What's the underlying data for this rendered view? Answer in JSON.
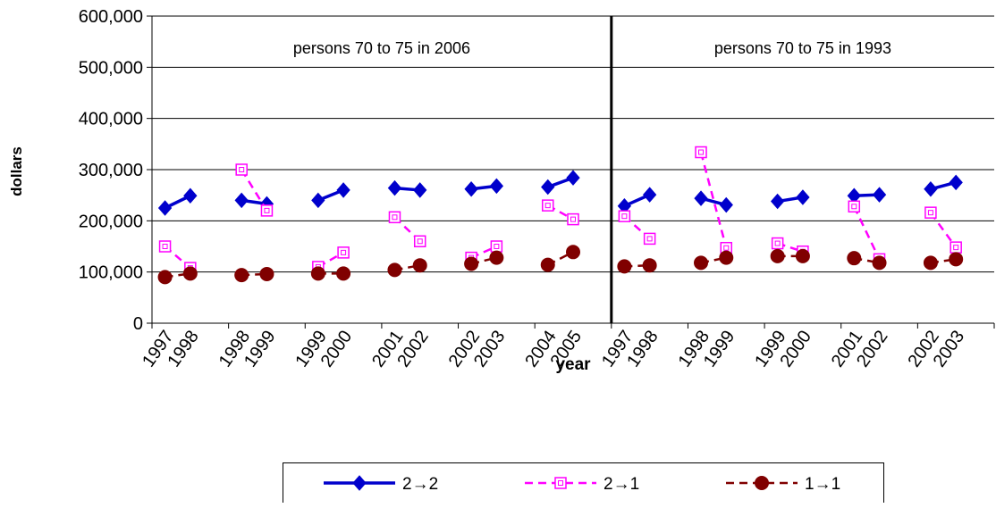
{
  "chart_data": {
    "type": "line",
    "ylabel": "dollars",
    "xlabel": "year",
    "ylim": [
      0,
      600000
    ],
    "y_ticks": [
      "0",
      "100,000",
      "200,000",
      "300,000",
      "400,000",
      "500,000",
      "600,000"
    ],
    "grid": true,
    "legend_placement": "bottom",
    "panels": [
      {
        "label": "persons 70 to 75 in 2006",
        "pairs": [
          {
            "years": [
              "1997",
              "1998"
            ],
            "s22": [
              225000,
              249000
            ],
            "s21": [
              150000,
              108000
            ],
            "s11": [
              90000,
              97000
            ]
          },
          {
            "years": [
              "1998",
              "1999"
            ],
            "s22": [
              240000,
              233000
            ],
            "s21": [
              300000,
              220000
            ],
            "s11": [
              94000,
              96000
            ]
          },
          {
            "years": [
              "1999",
              "2000"
            ],
            "s22": [
              240000,
              260000
            ],
            "s21": [
              110000,
              138000
            ],
            "s11": [
              97000,
              97000
            ]
          },
          {
            "years": [
              "2001",
              "2002"
            ],
            "s22": [
              264000,
              260000
            ],
            "s21": [
              207000,
              160000
            ],
            "s11": [
              104000,
              113000
            ]
          },
          {
            "years": [
              "2002",
              "2003"
            ],
            "s22": [
              262000,
              268000
            ],
            "s21": [
              128000,
              150000
            ],
            "s11": [
              116000,
              128000
            ]
          },
          {
            "years": [
              "2004",
              "2005"
            ],
            "s22": [
              266000,
              284000
            ],
            "s21": [
              230000,
              203000
            ],
            "s11": [
              114000,
              139000
            ]
          }
        ]
      },
      {
        "label": "persons 70 to 75 in 1993",
        "pairs": [
          {
            "years": [
              "1997",
              "1998"
            ],
            "s22": [
              229000,
              251000
            ],
            "s21": [
              209000,
              165000
            ],
            "s11": [
              111000,
              113000
            ]
          },
          {
            "years": [
              "1998",
              "1999"
            ],
            "s22": [
              244000,
              231000
            ],
            "s21": [
              334000,
              147000
            ],
            "s11": [
              118000,
              128000
            ]
          },
          {
            "years": [
              "1999",
              "2000"
            ],
            "s22": [
              238000,
              246000
            ],
            "s21": [
              156000,
              140000
            ],
            "s11": [
              131000,
              131000
            ]
          },
          {
            "years": [
              "2001",
              "2002"
            ],
            "s22": [
              249000,
              251000
            ],
            "s21": [
              228000,
              125000
            ],
            "s11": [
              127000,
              118000
            ]
          },
          {
            "years": [
              "2002",
              "2003"
            ],
            "s22": [
              262000,
              275000
            ],
            "s21": [
              216000,
              148000
            ],
            "s11": [
              118000,
              125000
            ]
          }
        ]
      }
    ],
    "series": [
      {
        "key": "s22",
        "name": "2→2",
        "color": "#0000CC",
        "marker": "diamond",
        "dash": "solid"
      },
      {
        "key": "s21",
        "name": "2→1",
        "color": "#FF00FF",
        "marker": "square-open",
        "dash": "dashed"
      },
      {
        "key": "s11",
        "name": "1→1",
        "color": "#800000",
        "marker": "circle",
        "dash": "dashed"
      }
    ]
  }
}
